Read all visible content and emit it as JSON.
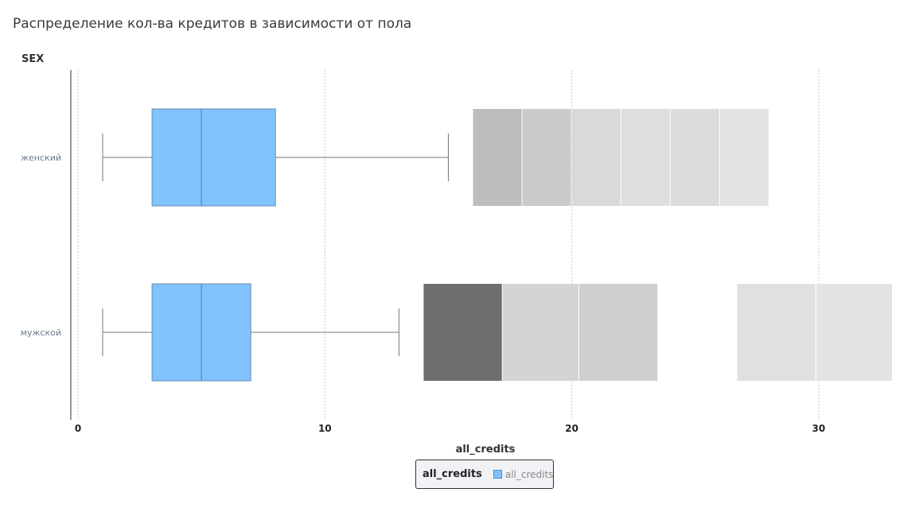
{
  "title": "Распределение кол-ва кредитов в зависимости от пола",
  "chart_data": {
    "type": "box",
    "title": "Распределение кол-ва кредитов в зависимости от пола",
    "ylabel": "SEX",
    "xlabel": "all_credits",
    "xlim": [
      0,
      33
    ],
    "xticks": [
      0,
      10,
      20,
      30
    ],
    "grid": true,
    "categories": [
      "женский",
      "мужской"
    ],
    "boxes": [
      {
        "category": "женский",
        "whisker_low": 1,
        "q1": 3,
        "median": 5,
        "q3": 8,
        "whisker_high": 15
      },
      {
        "category": "мужской",
        "whisker_low": 1,
        "q1": 3,
        "median": 5,
        "q3": 7,
        "whisker_high": 13
      }
    ],
    "outlier_bands": [
      {
        "category": "женский",
        "segments": [
          {
            "from": 16,
            "to": 18,
            "color": "#bdbdbd"
          },
          {
            "from": 18,
            "to": 20,
            "color": "#cbcbcb"
          },
          {
            "from": 20,
            "to": 22,
            "color": "#d9d9d9"
          },
          {
            "from": 22,
            "to": 24,
            "color": "#dedede"
          },
          {
            "from": 24,
            "to": 26,
            "color": "#dcdcdc"
          },
          {
            "from": 26,
            "to": 28,
            "color": "#e3e3e3"
          }
        ]
      },
      {
        "category": "мужской",
        "segments": [
          {
            "from": 14,
            "to": 17.2,
            "color": "#6e6e6e"
          },
          {
            "from": 17.2,
            "to": 20.3,
            "color": "#d4d4d4"
          },
          {
            "from": 20.3,
            "to": 23.5,
            "color": "#cfcfcf"
          },
          {
            "from": 26.7,
            "to": 29.9,
            "color": "#e0e0e0"
          },
          {
            "from": 29.9,
            "to": 33,
            "color": "#e3e3e3"
          }
        ]
      }
    ],
    "legend": {
      "title": "all_credits",
      "entries": [
        "all_credits"
      ],
      "position": "bottom"
    },
    "box_color": "#80c3fe"
  }
}
